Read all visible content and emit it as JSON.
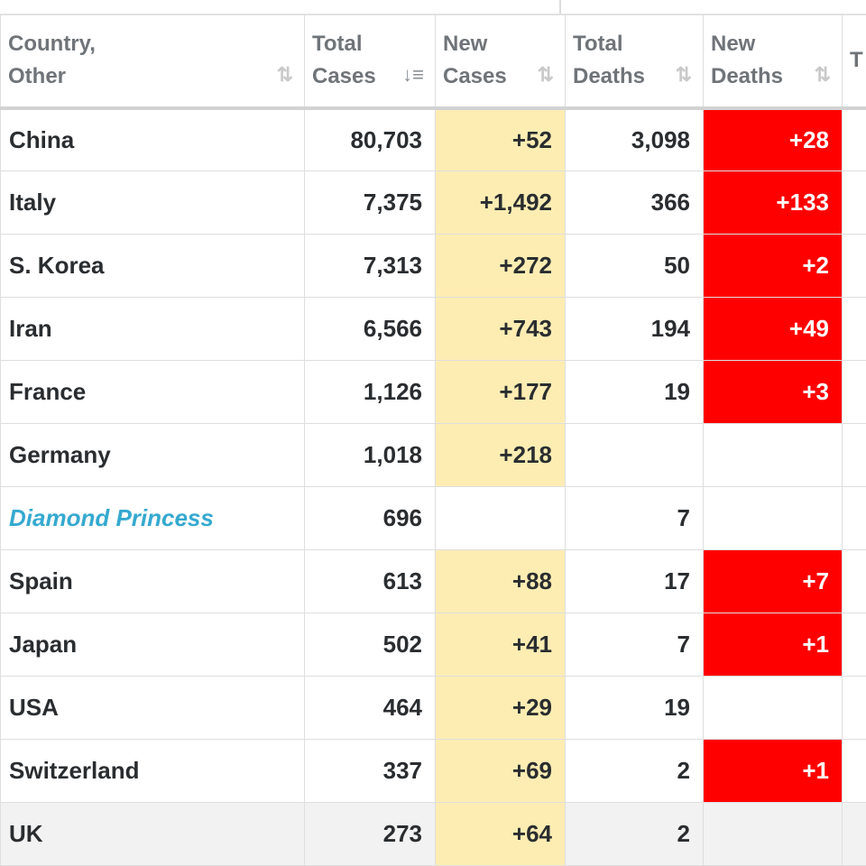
{
  "table": {
    "headers": [
      {
        "label": "Country,\nOther"
      },
      {
        "label": "Total\nCases"
      },
      {
        "label": "New\nCases"
      },
      {
        "label": "Total\nDeaths"
      },
      {
        "label": "New\nDeaths"
      },
      {
        "label": "T\nR"
      }
    ],
    "rows": [
      {
        "country": "China",
        "total_cases": "80,703",
        "new_cases": "+52",
        "total_deaths": "3,098",
        "new_deaths": "+28"
      },
      {
        "country": "Italy",
        "total_cases": "7,375",
        "new_cases": "+1,492",
        "total_deaths": "366",
        "new_deaths": "+133"
      },
      {
        "country": "S. Korea",
        "total_cases": "7,313",
        "new_cases": "+272",
        "total_deaths": "50",
        "new_deaths": "+2"
      },
      {
        "country": "Iran",
        "total_cases": "6,566",
        "new_cases": "+743",
        "total_deaths": "194",
        "new_deaths": "+49"
      },
      {
        "country": "France",
        "total_cases": "1,126",
        "new_cases": "+177",
        "total_deaths": "19",
        "new_deaths": "+3"
      },
      {
        "country": "Germany",
        "total_cases": "1,018",
        "new_cases": "+218",
        "total_deaths": "",
        "new_deaths": ""
      },
      {
        "country": "Diamond Princess",
        "total_cases": "696",
        "new_cases": "",
        "total_deaths": "7",
        "new_deaths": ""
      },
      {
        "country": "Spain",
        "total_cases": "613",
        "new_cases": "+88",
        "total_deaths": "17",
        "new_deaths": "+7"
      },
      {
        "country": "Japan",
        "total_cases": "502",
        "new_cases": "+41",
        "total_deaths": "7",
        "new_deaths": "+1"
      },
      {
        "country": "USA",
        "total_cases": "464",
        "new_cases": "+29",
        "total_deaths": "19",
        "new_deaths": ""
      },
      {
        "country": "Switzerland",
        "total_cases": "337",
        "new_cases": "+69",
        "total_deaths": "2",
        "new_deaths": "+1"
      },
      {
        "country": "UK",
        "total_cases": "273",
        "new_cases": "+64",
        "total_deaths": "2",
        "new_deaths": ""
      }
    ]
  },
  "icons": {
    "sort_both": "sort-both-icon",
    "sort_desc": "sort-descending-icon"
  },
  "colors": {
    "new_cases_highlight": "#fdedb3",
    "new_deaths_highlight": "#ff0000",
    "link_country": "#35a9d0"
  }
}
